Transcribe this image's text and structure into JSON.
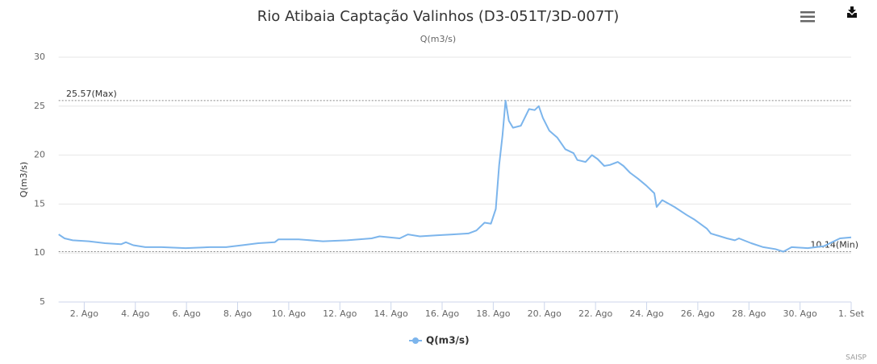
{
  "chart_data": {
    "type": "line",
    "title": "Rio Atibaia Captação Valinhos (D3-051T/3D-007T)",
    "subtitle": "Q(m3/s)",
    "y_axis_label": "Q(m3/s)",
    "credits": "SAISP",
    "x": [
      1.0,
      1.23,
      1.55,
      2.18,
      2.81,
      3.44,
      3.63,
      3.92,
      4.39,
      5.02,
      5.97,
      6.92,
      7.55,
      8.18,
      8.81,
      9.45,
      9.6,
      10.39,
      11.34,
      12.29,
      13.24,
      13.55,
      14.34,
      14.66,
      15.13,
      15.76,
      16.4,
      17.03,
      17.34,
      17.66,
      17.91,
      18.1,
      18.23,
      18.36,
      18.48,
      18.61,
      18.77,
      19.08,
      19.4,
      19.62,
      19.78,
      19.94,
      20.19,
      20.5,
      20.82,
      21.14,
      21.29,
      21.61,
      21.86,
      22.08,
      22.34,
      22.56,
      22.87,
      23.09,
      23.35,
      23.66,
      23.98,
      24.3,
      24.39,
      24.61,
      25.09,
      25.56,
      25.88,
      26.35,
      26.51,
      27.14,
      27.45,
      27.61,
      28.09,
      28.56,
      29.03,
      29.35,
      29.67,
      30.3,
      30.93,
      31.56,
      32.0
    ],
    "series": [
      {
        "name": "Q(m3/s)",
        "color": "#7cb5ec",
        "values": [
          11.9,
          11.5,
          11.3,
          11.2,
          11.0,
          10.9,
          11.1,
          10.8,
          10.6,
          10.6,
          10.5,
          10.6,
          10.6,
          10.8,
          11.0,
          11.1,
          11.4,
          11.4,
          11.2,
          11.3,
          11.5,
          11.7,
          11.5,
          11.9,
          11.7,
          11.8,
          11.9,
          12.0,
          12.3,
          13.1,
          13.0,
          14.5,
          19.0,
          22.0,
          25.57,
          23.5,
          22.8,
          23.0,
          24.7,
          24.6,
          25.0,
          23.8,
          22.5,
          21.8,
          20.6,
          20.2,
          19.5,
          19.3,
          20.0,
          19.6,
          18.9,
          19.0,
          19.3,
          18.9,
          18.2,
          17.6,
          16.9,
          16.1,
          14.7,
          15.4,
          14.7,
          13.9,
          13.4,
          12.5,
          12.0,
          11.5,
          11.3,
          11.5,
          11.0,
          10.6,
          10.4,
          10.14,
          10.6,
          10.5,
          10.7,
          11.5,
          11.6
        ]
      }
    ],
    "xlim": [
      1,
      32
    ],
    "xticks": [
      {
        "value": 2,
        "label": "2. Ago"
      },
      {
        "value": 4,
        "label": "4. Ago"
      },
      {
        "value": 6,
        "label": "6. Ago"
      },
      {
        "value": 8,
        "label": "8. Ago"
      },
      {
        "value": 10,
        "label": "10. Ago"
      },
      {
        "value": 12,
        "label": "12. Ago"
      },
      {
        "value": 14,
        "label": "14. Ago"
      },
      {
        "value": 16,
        "label": "16. Ago"
      },
      {
        "value": 18,
        "label": "18. Ago"
      },
      {
        "value": 20,
        "label": "20. Ago"
      },
      {
        "value": 22,
        "label": "22. Ago"
      },
      {
        "value": 24,
        "label": "24. Ago"
      },
      {
        "value": 26,
        "label": "26. Ago"
      },
      {
        "value": 28,
        "label": "28. Ago"
      },
      {
        "value": 30,
        "label": "30. Ago"
      },
      {
        "value": 32,
        "label": "1. Set"
      }
    ],
    "ylim": [
      5,
      30
    ],
    "yticks": [
      5,
      10,
      15,
      20,
      25,
      30
    ],
    "grid": true,
    "annotations": [
      {
        "value": 25.57,
        "label": "25.57(Max)"
      },
      {
        "value": 10.14,
        "label": "10.14(Min)"
      }
    ]
  }
}
